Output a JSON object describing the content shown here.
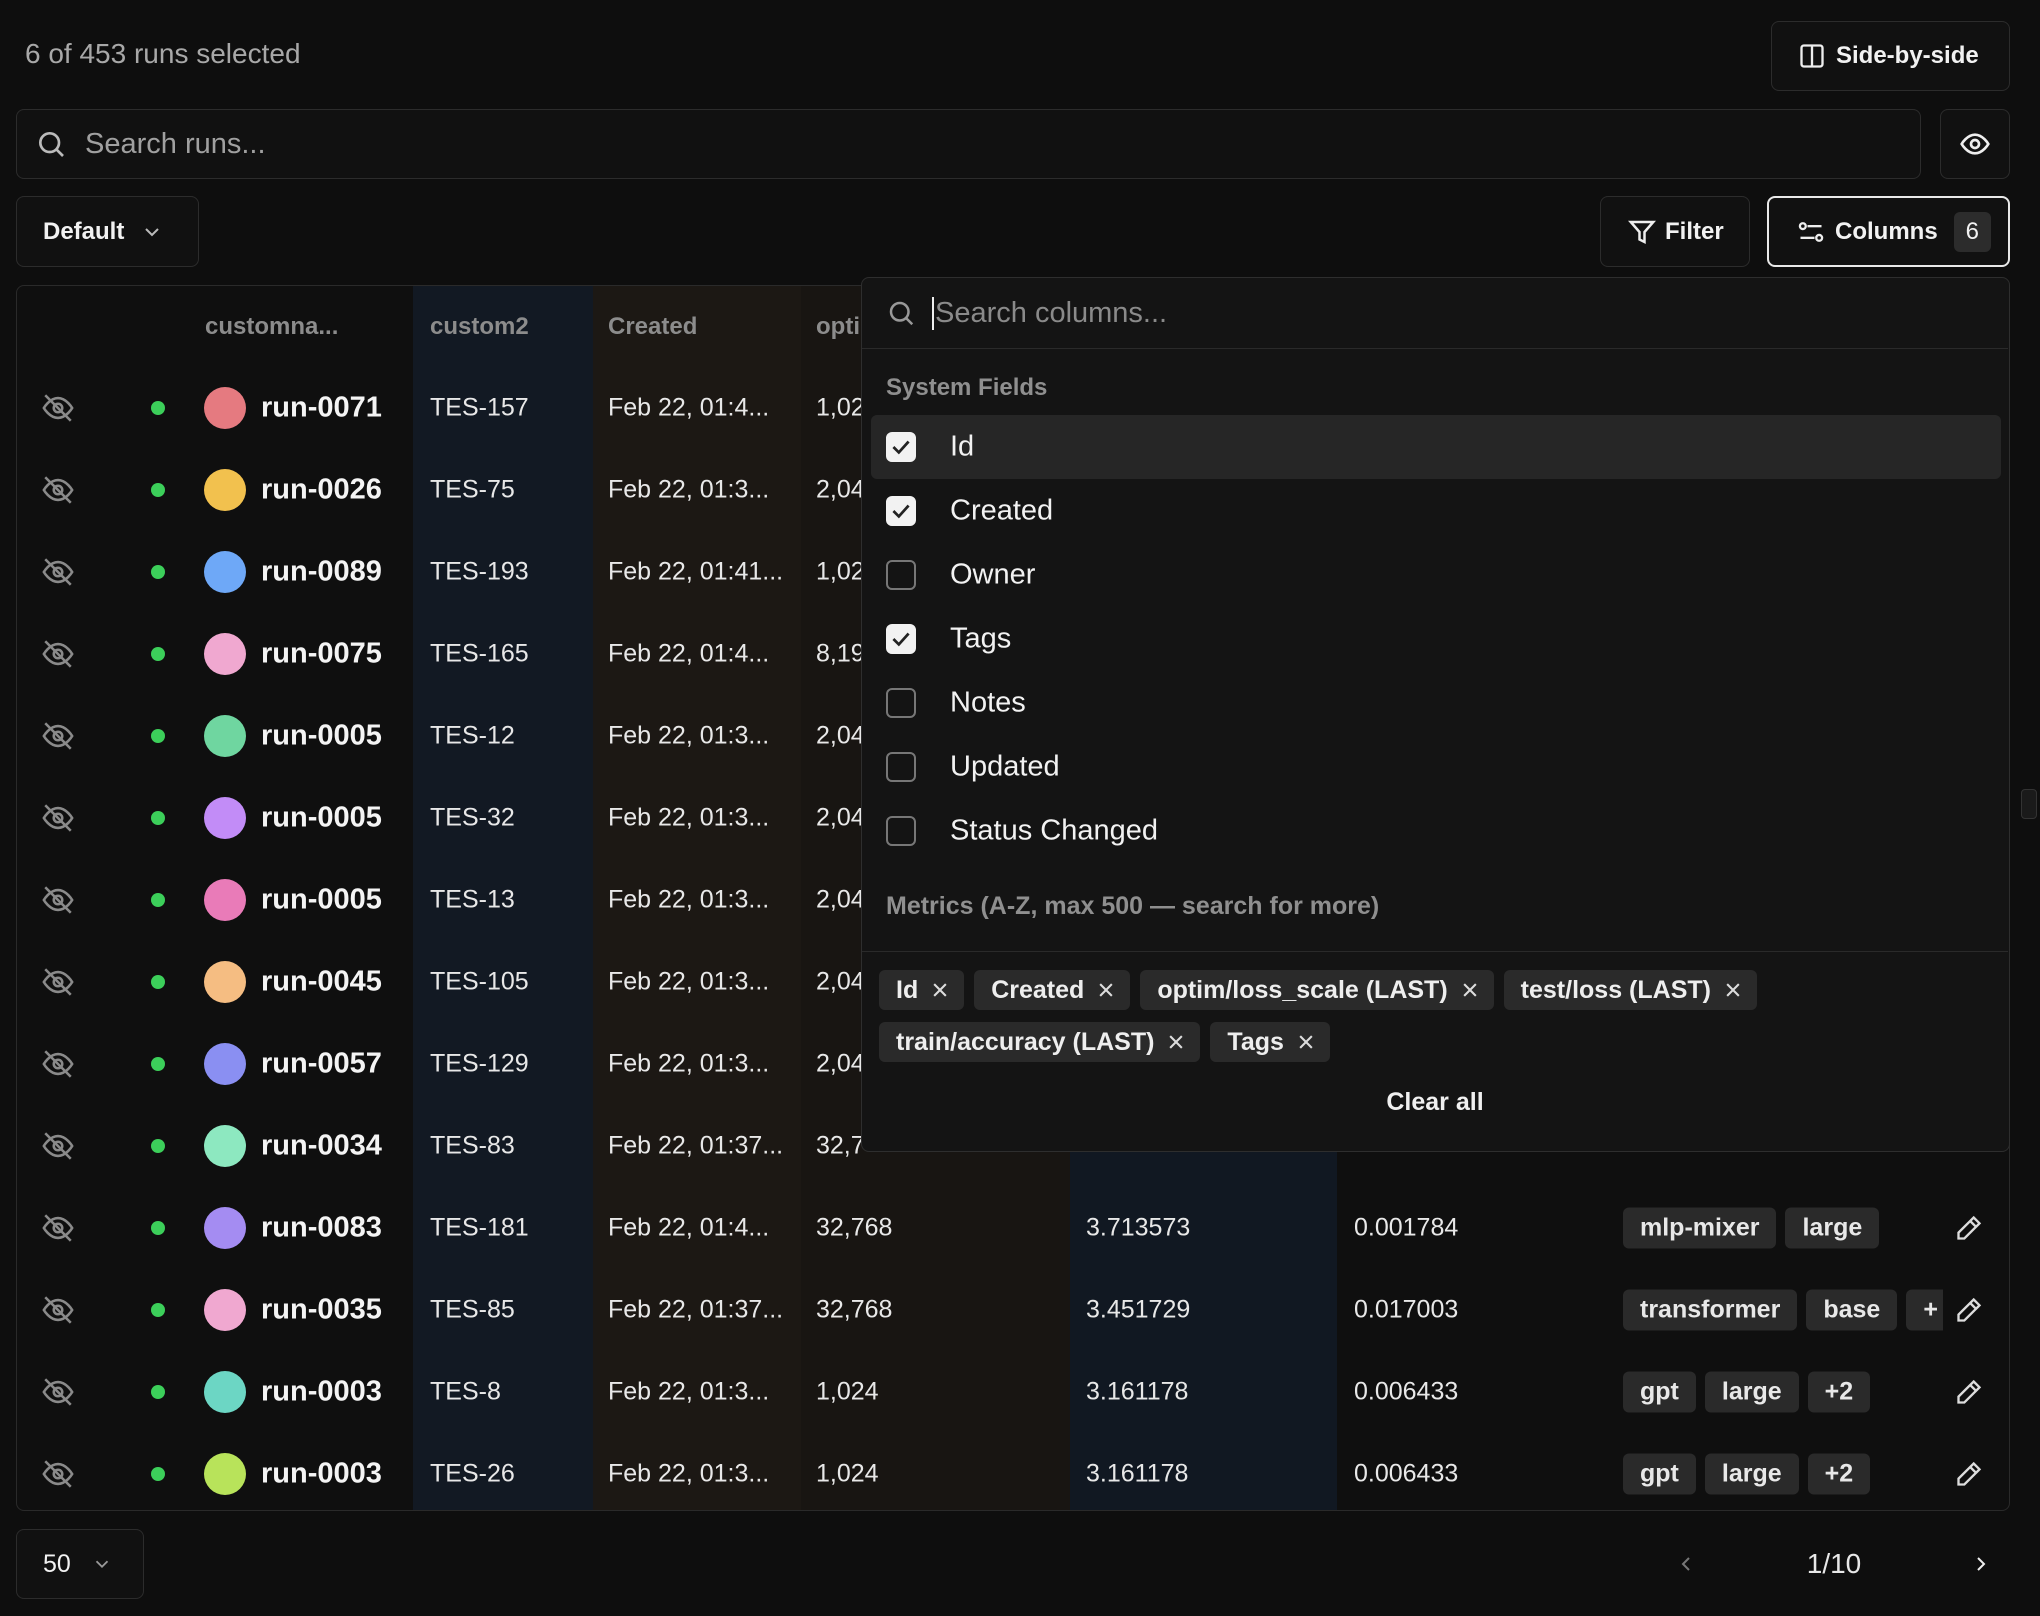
{
  "header": {
    "selection": "6 of 453 runs selected",
    "side_by_side": "Side-by-side"
  },
  "search": {
    "placeholder": "Search runs..."
  },
  "toolbar": {
    "view": "Default",
    "filter": "Filter",
    "columns": "Columns",
    "columns_count": "6"
  },
  "table": {
    "headers": [
      "customna...",
      "custom2",
      "Created",
      "opti"
    ],
    "rows": [
      {
        "name": "run-0071",
        "color": "#e57a80",
        "custom2": "TES-157",
        "created": "Feb 22, 01:4...",
        "opti": "1,02"
      },
      {
        "name": "run-0026",
        "color": "#f2c14e",
        "custom2": "TES-75",
        "created": "Feb 22, 01:3...",
        "opti": "2,04"
      },
      {
        "name": "run-0089",
        "color": "#6ea8f7",
        "custom2": "TES-193",
        "created": "Feb 22, 01:41...",
        "opti": "1,02"
      },
      {
        "name": "run-0075",
        "color": "#f0a8d0",
        "custom2": "TES-165",
        "created": "Feb 22, 01:4...",
        "opti": "8,19"
      },
      {
        "name": "run-0005",
        "color": "#6fd6a0",
        "custom2": "TES-12",
        "created": "Feb 22, 01:3...",
        "opti": "2,04"
      },
      {
        "name": "run-0005",
        "color": "#c28cf7",
        "custom2": "TES-32",
        "created": "Feb 22, 01:3...",
        "opti": "2,04"
      },
      {
        "name": "run-0005",
        "color": "#e97bb8",
        "custom2": "TES-13",
        "created": "Feb 22, 01:3...",
        "opti": "2,04"
      },
      {
        "name": "run-0045",
        "color": "#f5bd82",
        "custom2": "TES-105",
        "created": "Feb 22, 01:3...",
        "opti": "2,04"
      },
      {
        "name": "run-0057",
        "color": "#8a8ff2",
        "custom2": "TES-129",
        "created": "Feb 22, 01:3...",
        "opti": "2,04"
      },
      {
        "name": "run-0034",
        "color": "#8de8c0",
        "custom2": "TES-83",
        "created": "Feb 22, 01:37...",
        "opti": "32,7"
      },
      {
        "name": "run-0083",
        "color": "#a48cf2",
        "custom2": "TES-181",
        "created": "Feb 22, 01:4...",
        "opti": "32,768",
        "loss": "3.713573",
        "acc": "0.001784",
        "tags": [
          "mlp-mixer",
          "large"
        ]
      },
      {
        "name": "run-0035",
        "color": "#f0a8d0",
        "custom2": "TES-85",
        "created": "Feb 22, 01:37...",
        "opti": "32,768",
        "loss": "3.451729",
        "acc": "0.017003",
        "tags": [
          "transformer",
          "base",
          "+"
        ]
      },
      {
        "name": "run-0003",
        "color": "#6cd6c4",
        "custom2": "TES-8",
        "created": "Feb 22, 01:3...",
        "opti": "1,024",
        "loss": "3.161178",
        "acc": "0.006433",
        "tags": [
          "gpt",
          "large",
          "+2"
        ]
      },
      {
        "name": "run-0003",
        "color": "#b8e35a",
        "custom2": "TES-26",
        "created": "Feb 22, 01:3...",
        "opti": "1,024",
        "loss": "3.161178",
        "acc": "0.006433",
        "tags": [
          "gpt",
          "large",
          "+2"
        ]
      }
    ]
  },
  "panel": {
    "search_placeholder": "Search columns...",
    "system_title": "System Fields",
    "system_fields": [
      {
        "label": "Id",
        "checked": true
      },
      {
        "label": "Created",
        "checked": true
      },
      {
        "label": "Owner",
        "checked": false
      },
      {
        "label": "Tags",
        "checked": true
      },
      {
        "label": "Notes",
        "checked": false
      },
      {
        "label": "Updated",
        "checked": false
      },
      {
        "label": "Status Changed",
        "checked": false
      }
    ],
    "metrics_title": "Metrics (A-Z, max 500 — search for more)",
    "selected": [
      "Id",
      "Created",
      "optim/loss_scale (LAST)",
      "test/loss (LAST)",
      "train/accuracy (LAST)",
      "Tags"
    ],
    "clear": "Clear all"
  },
  "footer": {
    "page_size": "50",
    "page": "1/10"
  }
}
